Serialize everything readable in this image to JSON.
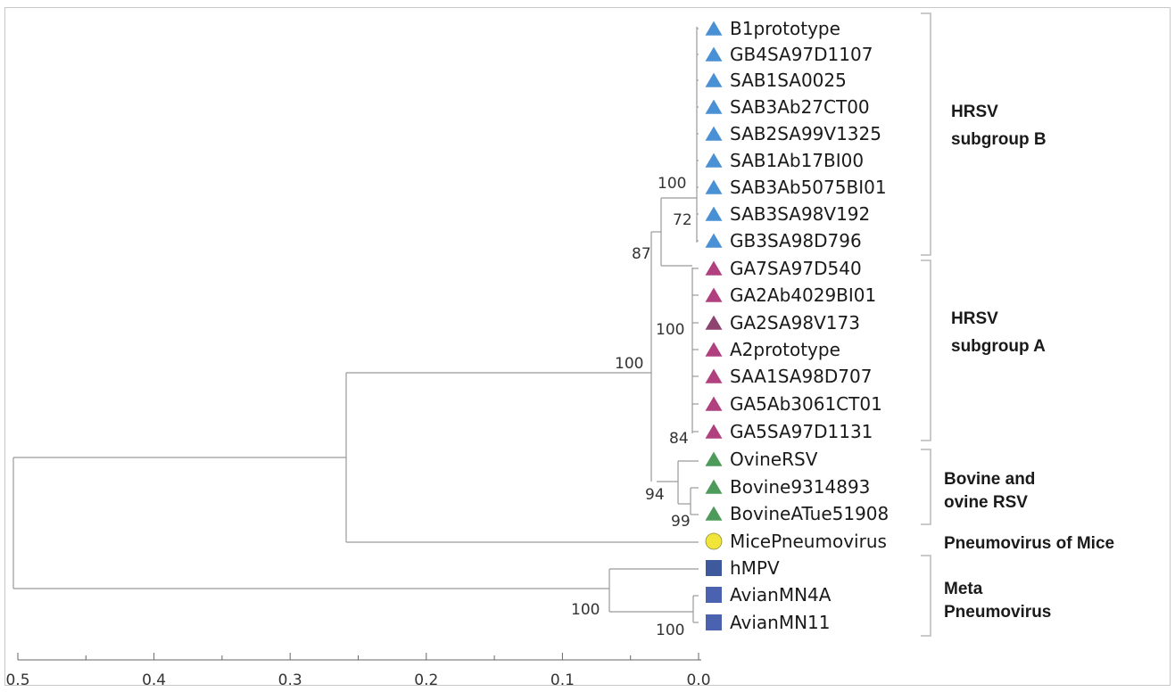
{
  "tree": {
    "leaves": [
      {
        "label": "B1prototype",
        "marker": "triangle",
        "color": "#4a90d4"
      },
      {
        "label": "GB4SA97D1107",
        "marker": "triangle",
        "color": "#4a90d4"
      },
      {
        "label": "SAB1SA0025",
        "marker": "triangle",
        "color": "#4a90d4"
      },
      {
        "label": "SAB3Ab27CT00",
        "marker": "triangle",
        "color": "#4a90d4"
      },
      {
        "label": "SAB2SA99V1325",
        "marker": "triangle",
        "color": "#4a90d4"
      },
      {
        "label": "SAB1Ab17BI00",
        "marker": "triangle",
        "color": "#4a90d4"
      },
      {
        "label": "SAB3Ab5075BI01",
        "marker": "triangle",
        "color": "#4a90d4"
      },
      {
        "label": "SAB3SA98V192",
        "marker": "triangle",
        "color": "#4a90d4"
      },
      {
        "label": "GB3SA98D796",
        "marker": "triangle",
        "color": "#4a90d4"
      },
      {
        "label": "GA7SA97D540",
        "marker": "triangle",
        "color": "#b0407e"
      },
      {
        "label": "GA2Ab4029BI01",
        "marker": "triangle",
        "color": "#b0407e"
      },
      {
        "label": "GA2SA98V173",
        "marker": "triangle",
        "color": "#8e4470"
      },
      {
        "label": "A2prototype",
        "marker": "triangle",
        "color": "#b0407e"
      },
      {
        "label": "SAA1SA98D707",
        "marker": "triangle",
        "color": "#b0407e"
      },
      {
        "label": "GA5Ab3061CT01",
        "marker": "triangle",
        "color": "#b0407e"
      },
      {
        "label": "GA5SA97D1131",
        "marker": "triangle",
        "color": "#b0407e"
      },
      {
        "label": "OvineRSV",
        "marker": "triangle",
        "color": "#4e9a5a"
      },
      {
        "label": "Bovine9314893",
        "marker": "triangle",
        "color": "#4e9a5a"
      },
      {
        "label": "BovineATue51908",
        "marker": "triangle",
        "color": "#4e9a5a"
      },
      {
        "label": "MicePneumovirus",
        "marker": "circle",
        "color": "#f2e53a"
      },
      {
        "label": "hMPV",
        "marker": "square",
        "color": "#3f5a9c"
      },
      {
        "label": "AvianMN4A",
        "marker": "square",
        "color": "#4a62b0"
      },
      {
        "label": "AvianMN11",
        "marker": "square",
        "color": "#4a62b0"
      }
    ],
    "support_values": [
      "100",
      "72",
      "87",
      "100",
      "100",
      "84",
      "94",
      "99",
      "100",
      "100"
    ],
    "groups": [
      {
        "line1": "HRSV",
        "line2": "subgroup B"
      },
      {
        "line1": "HRSV",
        "line2": "subgroup A"
      },
      {
        "line1": "Bovine and",
        "line2": "ovine RSV"
      },
      {
        "line1": "Pneumovirus of Mice",
        "line2": ""
      },
      {
        "line1": "Meta",
        "line2": "Pneumovirus"
      }
    ]
  },
  "scale_axis": {
    "ticks": [
      "0.5",
      "0.4",
      "0.3",
      "0.2",
      "0.1",
      "0.0"
    ]
  }
}
